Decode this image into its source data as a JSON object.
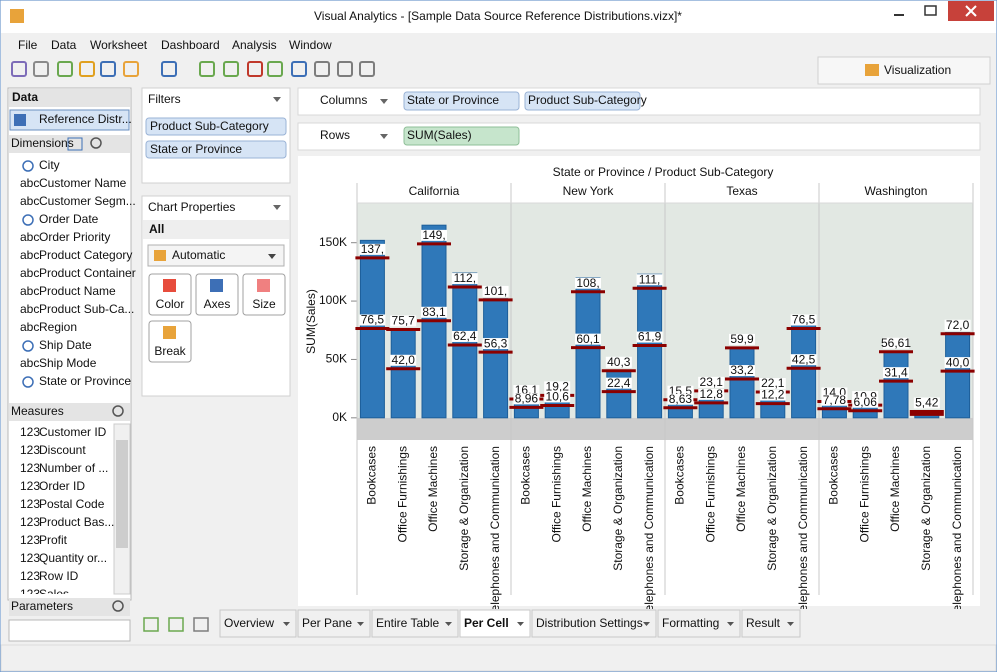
{
  "window": {
    "title": "Visual Analytics - [Sample Data Source Reference Distributions.vizx]*"
  },
  "menu": [
    "File",
    "Data",
    "Worksheet",
    "Dashboard",
    "Analysis",
    "Window"
  ],
  "toolbar": {
    "tab": "Visualization"
  },
  "data_panel": {
    "header": "Data",
    "source": "Reference Distr...",
    "dimensions_label": "Dimensions",
    "dimensions": [
      {
        "label": "City"
      },
      {
        "prefix": "abc",
        "label": "Customer Name"
      },
      {
        "prefix": "abc",
        "label": "Customer Segm..."
      },
      {
        "label": "Order Date"
      },
      {
        "prefix": "abc",
        "label": "Order Priority"
      },
      {
        "prefix": "abc",
        "label": "Product Category"
      },
      {
        "prefix": "abc",
        "label": "Product Container"
      },
      {
        "prefix": "abc",
        "label": "Product Name"
      },
      {
        "prefix": "abc",
        "label": "Product Sub-Ca..."
      },
      {
        "prefix": "abc",
        "label": "Region"
      },
      {
        "label": "Ship Date"
      },
      {
        "prefix": "abc",
        "label": "Ship Mode"
      },
      {
        "label": "State or Province"
      }
    ],
    "measures_label": "Measures",
    "measures": [
      {
        "prefix": "123",
        "label": "Customer ID"
      },
      {
        "prefix": "123",
        "label": "Discount"
      },
      {
        "prefix": "123",
        "label": "Number of ..."
      },
      {
        "prefix": "123",
        "label": "Order ID"
      },
      {
        "prefix": "123",
        "label": "Postal Code"
      },
      {
        "prefix": "123",
        "label": "Product Bas..."
      },
      {
        "prefix": "123",
        "label": "Profit"
      },
      {
        "prefix": "123",
        "label": "Quantity or..."
      },
      {
        "prefix": "123",
        "label": "Row ID"
      },
      {
        "prefix": "123",
        "label": "Sales"
      }
    ],
    "parameters_label": "Parameters"
  },
  "filters": {
    "title": "Filters",
    "items": [
      "Product Sub-Category",
      "State or Province"
    ]
  },
  "chart_properties": {
    "title": "Chart Properties",
    "scope": "All",
    "chart_type": "Automatic",
    "buttons": [
      "Color",
      "Axes",
      "Size",
      "Break"
    ]
  },
  "shelves": {
    "columns_label": "Columns",
    "columns": [
      "State or Province",
      "Product Sub-Category"
    ],
    "rows_label": "Rows",
    "rows": [
      "SUM(Sales)"
    ]
  },
  "tabs": [
    "Overview",
    "Per Pane",
    "Entire Table",
    "Per Cell",
    "Distribution Settings",
    "Formatting",
    "Result"
  ],
  "active_tab": 3,
  "chart_data": {
    "type": "bar",
    "title": "State or Province / Product Sub-Category",
    "y_label": "SUM(Sales)",
    "categories": [
      "Bookcases",
      "Office Furnishings",
      "Office Machines",
      "Storage & Organization",
      "Telephones and Communication"
    ],
    "color": "#2f78b9",
    "ref_color": "#8b0000",
    "ylim": [
      -19000,
      184000
    ],
    "yticks": [
      {
        "value": 0,
        "label": "0K"
      },
      {
        "value": 50000,
        "label": "50K"
      },
      {
        "value": 100000,
        "label": "100K"
      },
      {
        "value": 150000,
        "label": "150K"
      }
    ],
    "panels": [
      {
        "name": "California",
        "values": [
          152000,
          76000,
          165000,
          124000,
          102000
        ],
        "upper": [
          137000,
          75700,
          149000,
          112000,
          101000
        ],
        "upper_labels": [
          "137,",
          "75,7",
          "149,",
          "112,",
          "101,"
        ],
        "lower": [
          76500,
          42000,
          83100,
          62400,
          56300
        ],
        "lower_labels": [
          "76,5",
          "42,0",
          "83,1",
          "62,4",
          "56,3"
        ]
      },
      {
        "name": "New York",
        "values": [
          17500,
          20500,
          120000,
          41000,
          123000
        ],
        "upper": [
          16100,
          19200,
          108000,
          40300,
          111000
        ],
        "upper_labels": [
          "16,1",
          "19,2",
          "108,",
          "40,3",
          "111,"
        ],
        "lower": [
          8960,
          10600,
          60100,
          22400,
          61900
        ],
        "lower_labels": [
          "8,96",
          "10,6",
          "60,1",
          "22,4",
          "61,9"
        ]
      },
      {
        "name": "Texas",
        "values": [
          16000,
          24000,
          60500,
          23000,
          86000
        ],
        "upper": [
          15500,
          23100,
          59900,
          22100,
          76500
        ],
        "upper_labels": [
          "15,5",
          "23,1",
          "59,9",
          "22,1",
          "76,5"
        ],
        "lower": [
          8630,
          12800,
          33200,
          12200,
          42500
        ],
        "lower_labels": [
          "8,63",
          "12,8",
          "33,2",
          "12,2",
          "42,5"
        ]
      },
      {
        "name": "Washington",
        "values": [
          14500,
          11500,
          57000,
          6000,
          73000
        ],
        "upper": [
          14000,
          10900,
          56610,
          5420,
          72000
        ],
        "upper_labels": [
          "14,0",
          "10,9",
          "56,61",
          "5,42",
          "72,0"
        ],
        "lower": [
          7780,
          6060,
          31400,
          3000,
          40000
        ],
        "lower_labels": [
          "7,78",
          "6,06",
          "31,4",
          null,
          "40,0"
        ]
      }
    ]
  }
}
